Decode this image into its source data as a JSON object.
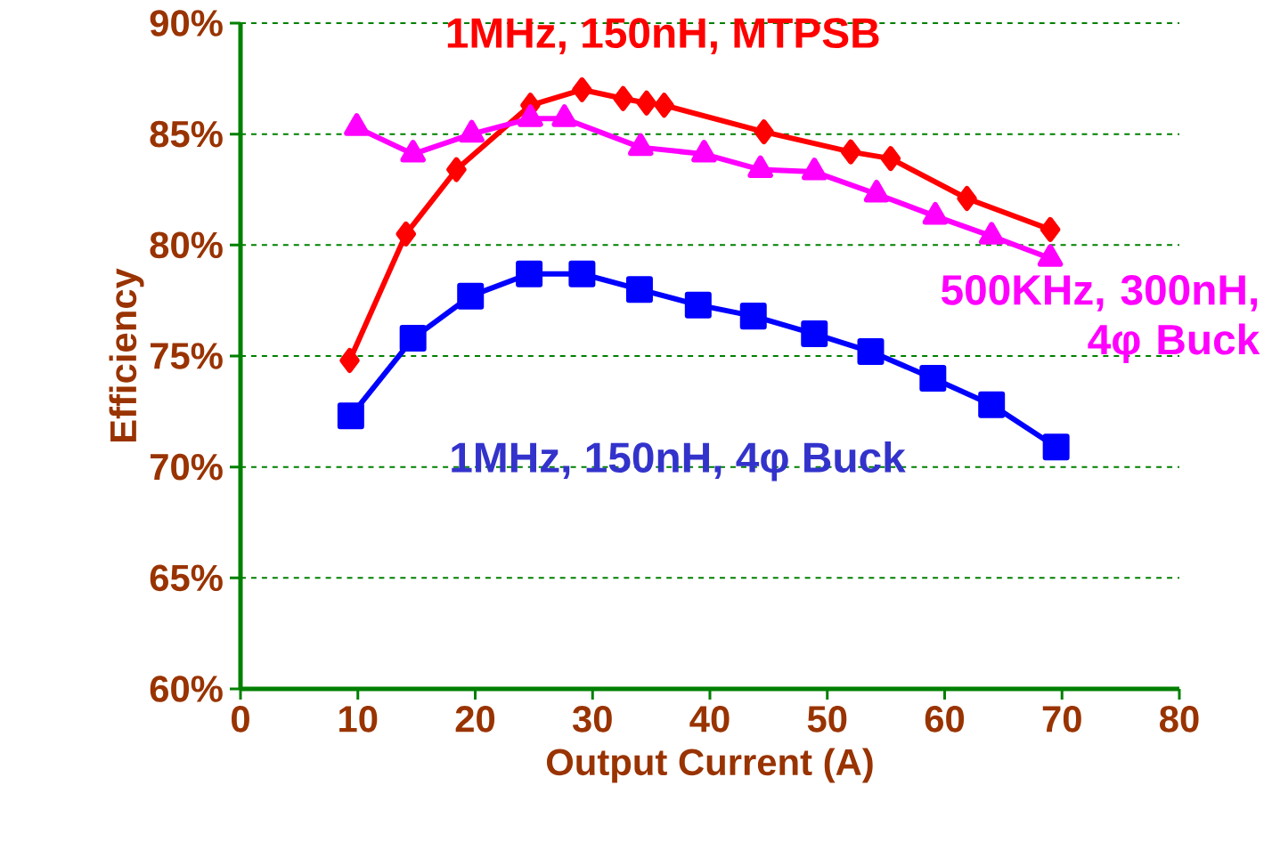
{
  "chart_data": {
    "type": "line",
    "xlabel": "Output Current (A)",
    "ylabel": "Efficiency",
    "xlim": [
      0,
      80
    ],
    "ylim": [
      60,
      90
    ],
    "xticks": [
      0,
      10,
      20,
      30,
      40,
      50,
      60,
      70,
      80
    ],
    "yticks": [
      {
        "value": 60,
        "label": "60%"
      },
      {
        "value": 65,
        "label": "65%"
      },
      {
        "value": 70,
        "label": "70%"
      },
      {
        "value": 75,
        "label": "75%"
      },
      {
        "value": 80,
        "label": "80%"
      },
      {
        "value": 85,
        "label": "85%"
      },
      {
        "value": 90,
        "label": "90%"
      }
    ],
    "grid": "y",
    "legend": false,
    "series": [
      {
        "name": "1MHz, 150nH, MTPSB",
        "color": "#ff0000",
        "marker": "diamond",
        "x": [
          9.3,
          14.1,
          18.4,
          24.7,
          29.1,
          32.6,
          34.6,
          36.1,
          44.6,
          52.0,
          55.4,
          61.9,
          69.0
        ],
        "values": [
          74.8,
          80.5,
          83.4,
          86.3,
          87.0,
          86.6,
          86.4,
          86.3,
          85.1,
          84.2,
          83.9,
          82.1,
          80.7
        ]
      },
      {
        "name": "500KHz, 300nH, 4φ Buck",
        "color": "#ff00ff",
        "marker": "triangle",
        "x": [
          9.9,
          14.7,
          19.7,
          24.7,
          27.6,
          34.1,
          39.5,
          44.3,
          48.9,
          54.2,
          59.2,
          64.0,
          69.0
        ],
        "values": [
          85.3,
          84.1,
          85.0,
          85.7,
          85.7,
          84.4,
          84.1,
          83.4,
          83.3,
          82.3,
          81.3,
          80.4,
          79.4
        ]
      },
      {
        "name": "1MHz, 150nH, 4φ Buck",
        "color": "#0000ff",
        "marker": "square",
        "x": [
          9.4,
          14.7,
          19.6,
          24.6,
          29.1,
          34.0,
          39.0,
          43.7,
          48.9,
          53.7,
          59.0,
          64.0,
          69.5
        ],
        "values": [
          72.3,
          75.8,
          77.7,
          78.7,
          78.7,
          78.0,
          77.3,
          76.8,
          76.0,
          75.2,
          74.0,
          72.8,
          70.9
        ]
      }
    ]
  }
}
